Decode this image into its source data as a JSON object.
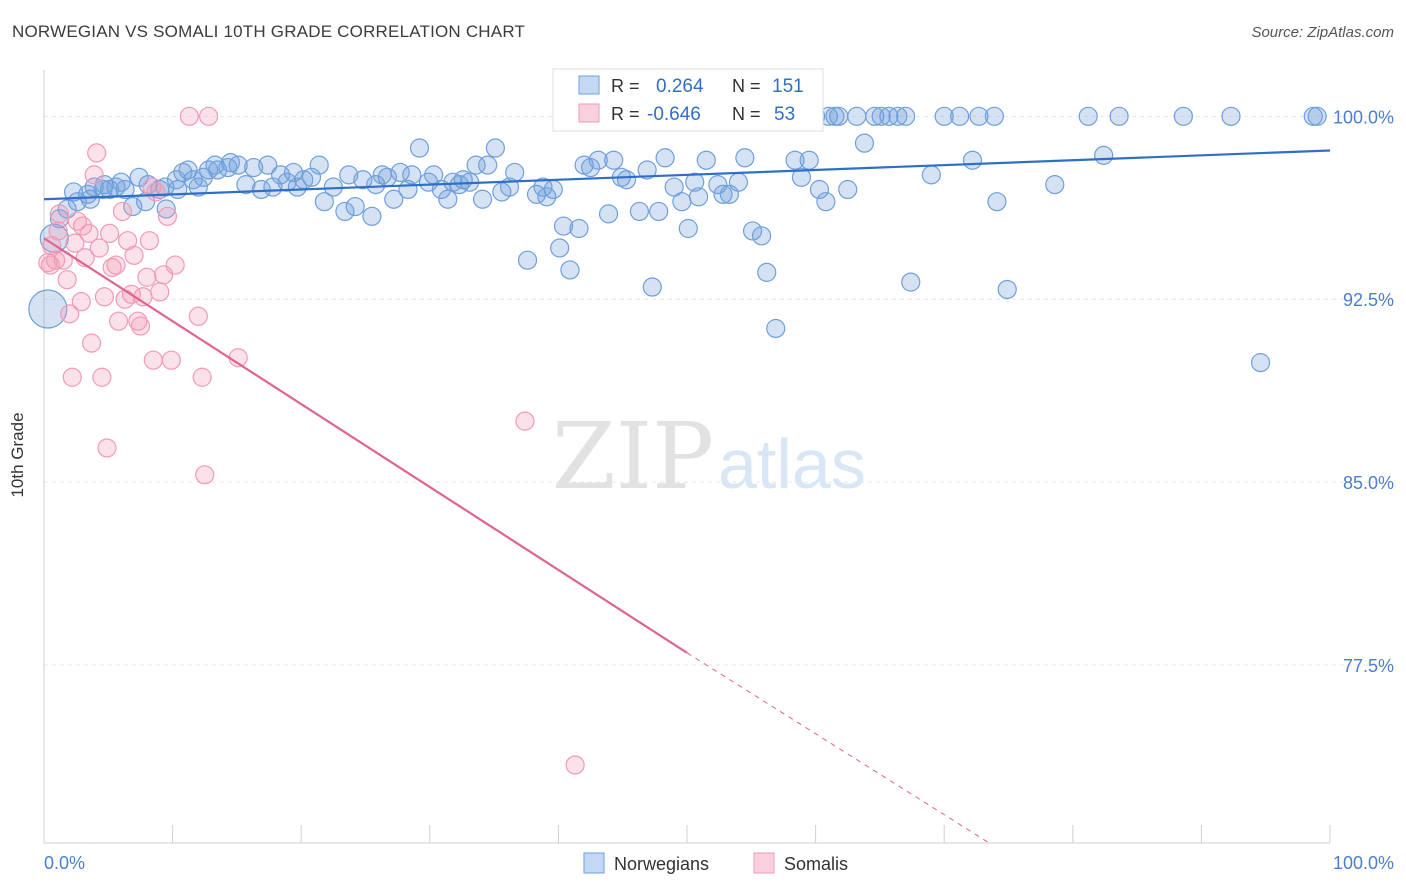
{
  "header": {
    "title": "NORWEGIAN VS SOMALI 10TH GRADE CORRELATION CHART",
    "source": "Source: ZipAtlas.com"
  },
  "watermark": {
    "zip": "ZIP",
    "atlas": "atlas"
  },
  "chart_data": {
    "type": "scatter",
    "ylabel": "10th Grade",
    "xlim": [
      0,
      100
    ],
    "ylim": [
      70.2,
      101.9
    ],
    "y_ticks": [
      {
        "value": 100.0,
        "label": "100.0%"
      },
      {
        "value": 92.5,
        "label": "92.5%"
      },
      {
        "value": 85.0,
        "label": "85.0%"
      },
      {
        "value": 77.5,
        "label": "77.5%"
      }
    ],
    "x_tick_labels": {
      "left": "0.0%",
      "right": "100.0%"
    },
    "legend_placement": "top-center",
    "stats": [
      {
        "r_label": "R =",
        "r_value": "0.264",
        "n_label": "N =",
        "n_value": "151"
      },
      {
        "r_label": "R =",
        "r_value": "-0.646",
        "n_label": "N =",
        "n_value": "53"
      }
    ],
    "series": [
      {
        "name": "Norwegians",
        "color": "#6f9fdc",
        "line_color": "#2f6fc8",
        "trend": {
          "x": [
            0,
            100
          ],
          "y": [
            96.6,
            98.6
          ]
        },
        "points": [
          [
            0.3,
            92.1
          ],
          [
            0.8,
            95.0
          ],
          [
            1.2,
            95.8
          ],
          [
            1.8,
            96.2
          ],
          [
            2.3,
            96.9
          ],
          [
            2.6,
            96.5
          ],
          [
            3.4,
            96.8
          ],
          [
            3.6,
            96.6
          ],
          [
            3.9,
            97.1
          ],
          [
            4.7,
            97.2
          ],
          [
            4.6,
            97.0
          ],
          [
            5.1,
            97.0
          ],
          [
            5.6,
            97.1
          ],
          [
            6.0,
            97.3
          ],
          [
            6.3,
            97.0
          ],
          [
            6.9,
            96.3
          ],
          [
            7.4,
            97.5
          ],
          [
            7.9,
            96.5
          ],
          [
            8.1,
            97.2
          ],
          [
            9.0,
            97.0
          ],
          [
            9.4,
            97.1
          ],
          [
            9.5,
            96.2
          ],
          [
            10.3,
            97.4
          ],
          [
            10.4,
            97.0
          ],
          [
            10.8,
            97.7
          ],
          [
            11.2,
            97.8
          ],
          [
            11.6,
            97.4
          ],
          [
            12.0,
            97.1
          ],
          [
            12.4,
            97.5
          ],
          [
            12.8,
            97.8
          ],
          [
            13.3,
            98.0
          ],
          [
            13.5,
            97.8
          ],
          [
            14.3,
            97.9
          ],
          [
            14.5,
            98.1
          ],
          [
            15.1,
            98.0
          ],
          [
            15.7,
            97.2
          ],
          [
            16.3,
            97.9
          ],
          [
            16.9,
            97.0
          ],
          [
            17.4,
            98.0
          ],
          [
            17.8,
            97.1
          ],
          [
            18.4,
            97.6
          ],
          [
            18.9,
            97.3
          ],
          [
            19.4,
            97.7
          ],
          [
            19.7,
            97.1
          ],
          [
            20.2,
            97.4
          ],
          [
            20.8,
            97.5
          ],
          [
            21.4,
            98.0
          ],
          [
            21.8,
            96.5
          ],
          [
            22.5,
            97.1
          ],
          [
            23.4,
            96.1
          ],
          [
            23.7,
            97.6
          ],
          [
            24.2,
            96.3
          ],
          [
            24.8,
            97.4
          ],
          [
            25.5,
            95.9
          ],
          [
            25.8,
            97.2
          ],
          [
            26.3,
            97.6
          ],
          [
            26.7,
            97.5
          ],
          [
            27.2,
            96.6
          ],
          [
            27.7,
            97.7
          ],
          [
            28.3,
            97.0
          ],
          [
            28.6,
            97.6
          ],
          [
            29.2,
            98.7
          ],
          [
            29.9,
            97.3
          ],
          [
            30.3,
            97.6
          ],
          [
            30.9,
            97.0
          ],
          [
            31.4,
            96.6
          ],
          [
            31.8,
            97.3
          ],
          [
            32.3,
            97.2
          ],
          [
            32.6,
            97.4
          ],
          [
            33.1,
            97.3
          ],
          [
            33.6,
            98.0
          ],
          [
            34.1,
            96.6
          ],
          [
            34.5,
            98.0
          ],
          [
            35.1,
            98.7
          ],
          [
            35.6,
            96.9
          ],
          [
            36.2,
            97.1
          ],
          [
            36.6,
            97.7
          ],
          [
            37.6,
            94.1
          ],
          [
            38.3,
            96.8
          ],
          [
            38.8,
            97.1
          ],
          [
            39.1,
            96.7
          ],
          [
            39.6,
            97.0
          ],
          [
            40.1,
            94.6
          ],
          [
            40.4,
            95.5
          ],
          [
            40.9,
            93.7
          ],
          [
            41.6,
            95.4
          ],
          [
            42.0,
            98.0
          ],
          [
            42.5,
            97.9
          ],
          [
            43.1,
            98.2
          ],
          [
            43.9,
            96.0
          ],
          [
            44.3,
            98.2
          ],
          [
            44.9,
            97.5
          ],
          [
            45.3,
            97.4
          ],
          [
            46.3,
            96.1
          ],
          [
            46.9,
            97.8
          ],
          [
            47.3,
            93.0
          ],
          [
            47.8,
            96.1
          ],
          [
            48.3,
            98.3
          ],
          [
            49.0,
            97.1
          ],
          [
            49.6,
            96.5
          ],
          [
            50.1,
            95.4
          ],
          [
            50.6,
            97.3
          ],
          [
            50.9,
            96.7
          ],
          [
            51.5,
            98.2
          ],
          [
            52.4,
            97.2
          ],
          [
            52.8,
            96.8
          ],
          [
            53.3,
            96.8
          ],
          [
            54.0,
            97.3
          ],
          [
            54.5,
            98.3
          ],
          [
            55.1,
            95.3
          ],
          [
            55.8,
            95.1
          ],
          [
            56.2,
            93.6
          ],
          [
            56.9,
            91.3
          ],
          [
            58.1,
            100.0
          ],
          [
            58.4,
            98.2
          ],
          [
            58.9,
            97.5
          ],
          [
            59.5,
            98.2
          ],
          [
            60.3,
            97.0
          ],
          [
            60.8,
            96.5
          ],
          [
            61.0,
            100.0
          ],
          [
            61.8,
            100.0
          ],
          [
            62.5,
            97.0
          ],
          [
            63.2,
            100.0
          ],
          [
            63.8,
            98.9
          ],
          [
            64.6,
            100.0
          ],
          [
            65.1,
            100.0
          ],
          [
            65.7,
            100.0
          ],
          [
            67.4,
            93.2
          ],
          [
            69.0,
            97.6
          ],
          [
            70.0,
            100.0
          ],
          [
            71.2,
            100.0
          ],
          [
            72.2,
            98.2
          ],
          [
            73.9,
            100.0
          ],
          [
            74.1,
            96.5
          ],
          [
            74.9,
            92.9
          ],
          [
            78.6,
            97.2
          ],
          [
            81.2,
            100.0
          ],
          [
            82.4,
            98.4
          ],
          [
            83.6,
            100.0
          ],
          [
            88.6,
            100.0
          ],
          [
            92.3,
            100.0
          ],
          [
            94.6,
            89.9
          ],
          [
            98.7,
            100.0
          ],
          [
            99.0,
            100.0
          ],
          [
            56.0,
            100.0
          ],
          [
            60.0,
            100.0
          ],
          [
            67.0,
            100.0
          ],
          [
            61.5,
            100.0
          ],
          [
            66.4,
            100.0
          ],
          [
            72.7,
            100.0
          ],
          [
            55.4,
            100.0
          ]
        ]
      },
      {
        "name": "Somalis",
        "color": "#f29ab5",
        "line_color": "#e0648f",
        "trend": {
          "x": [
            0,
            50
          ],
          "y": [
            95.0,
            78.0
          ]
        },
        "trend_extension": {
          "x": [
            50,
            73.5
          ],
          "y": [
            78.0,
            70.2
          ]
        },
        "points": [
          [
            0.3,
            94.0
          ],
          [
            0.6,
            94.7
          ],
          [
            0.9,
            94.1
          ],
          [
            1.2,
            96.0
          ],
          [
            1.5,
            94.1
          ],
          [
            1.8,
            93.3
          ],
          [
            2.0,
            91.9
          ],
          [
            2.2,
            89.3
          ],
          [
            2.4,
            94.8
          ],
          [
            2.6,
            95.7
          ],
          [
            2.9,
            92.4
          ],
          [
            3.2,
            94.2
          ],
          [
            3.5,
            95.2
          ],
          [
            3.7,
            90.7
          ],
          [
            3.9,
            97.6
          ],
          [
            4.1,
            98.5
          ],
          [
            4.3,
            94.6
          ],
          [
            4.5,
            89.3
          ],
          [
            4.7,
            92.6
          ],
          [
            4.9,
            86.4
          ],
          [
            5.1,
            95.2
          ],
          [
            5.3,
            93.8
          ],
          [
            5.6,
            93.9
          ],
          [
            5.8,
            91.6
          ],
          [
            6.1,
            96.1
          ],
          [
            6.3,
            92.5
          ],
          [
            6.5,
            94.9
          ],
          [
            6.8,
            92.7
          ],
          [
            7.0,
            94.3
          ],
          [
            7.3,
            91.6
          ],
          [
            7.5,
            91.4
          ],
          [
            7.7,
            92.6
          ],
          [
            8.0,
            93.4
          ],
          [
            8.2,
            94.9
          ],
          [
            8.5,
            90.0
          ],
          [
            8.7,
            96.9
          ],
          [
            9.0,
            92.8
          ],
          [
            9.3,
            93.5
          ],
          [
            9.6,
            95.9
          ],
          [
            9.9,
            90.0
          ],
          [
            10.2,
            93.9
          ],
          [
            11.3,
            100.0
          ],
          [
            12.0,
            91.8
          ],
          [
            12.3,
            89.3
          ],
          [
            12.5,
            85.3
          ],
          [
            12.8,
            100.0
          ],
          [
            15.1,
            90.1
          ],
          [
            37.4,
            87.5
          ],
          [
            41.3,
            73.4
          ],
          [
            0.5,
            93.9
          ],
          [
            1.1,
            95.3
          ],
          [
            8.4,
            97.1
          ],
          [
            3.0,
            95.5
          ]
        ]
      }
    ]
  }
}
